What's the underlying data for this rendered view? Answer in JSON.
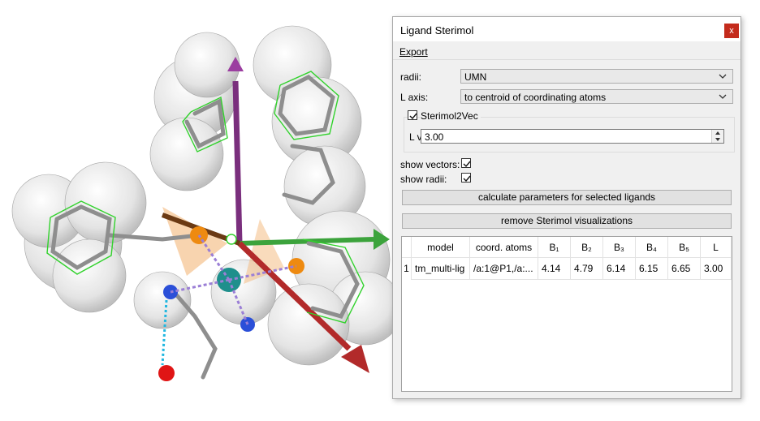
{
  "window": {
    "title": "Ligand Sterimol",
    "close_glyph": "x"
  },
  "menu": {
    "export": "Export"
  },
  "form": {
    "radii_label": "radii:",
    "radii_value": "UMN",
    "laxis_label": "L axis:",
    "laxis_value": "to centroid of coordinating atoms",
    "sterimol2vec_label": "Sterimol2Vec",
    "sterimol2vec_checked": true,
    "lvalue_label": "L value:",
    "lvalue_value": "3.00",
    "show_vectors_label": "show vectors:",
    "show_vectors_checked": true,
    "show_radii_label": "show radii:",
    "show_radii_checked": true
  },
  "buttons": {
    "calculate": "calculate parameters for selected ligands",
    "remove": "remove Sterimol visualizations"
  },
  "table": {
    "headers": [
      "model",
      "coord. atoms",
      "B₁",
      "B₂",
      "B₃",
      "B₄",
      "B₅",
      "L"
    ],
    "rows": [
      {
        "num": "1",
        "cells": [
          "tm_multi-lig",
          "/a:1@P1,/a:...",
          "4.14",
          "4.79",
          "6.14",
          "6.15",
          "6.65",
          "3.00"
        ]
      }
    ]
  },
  "viewport": {
    "description_icon": "molecule-3d-view"
  }
}
